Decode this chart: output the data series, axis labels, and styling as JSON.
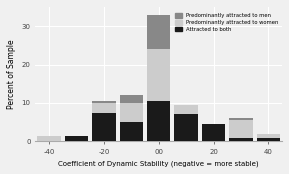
{
  "title": "",
  "xlabel": "Coefficient of Dynamic Stability (negative = more stable)",
  "ylabel": "Percent of Sample",
  "xlim": [
    -45,
    45
  ],
  "ylim": [
    0,
    35
  ],
  "yticks": [
    0,
    10,
    20,
    30
  ],
  "xtick_labels": [
    "-40",
    "-20",
    "00",
    "20",
    "40"
  ],
  "xtick_positions": [
    -40,
    -20,
    0,
    20,
    40
  ],
  "bin_centers": [
    -40,
    -30,
    -20,
    -10,
    0,
    10,
    20,
    30,
    40
  ],
  "bar_width": 8.5,
  "men_values": [
    0.0,
    0.0,
    0.5,
    2.0,
    9.0,
    0.0,
    0.0,
    0.5,
    0.0
  ],
  "women_values": [
    1.5,
    0.0,
    2.5,
    5.0,
    13.5,
    2.5,
    0.0,
    4.5,
    1.0
  ],
  "both_values": [
    0.0,
    1.5,
    7.5,
    5.0,
    10.5,
    7.0,
    4.5,
    1.0,
    1.0
  ],
  "color_men": "#888888",
  "color_women": "#cccccc",
  "color_both": "#1a1a1a",
  "legend_labels": [
    "Predominantly attracted to men",
    "Predominantly attracted to women",
    "Attracted to both"
  ],
  "background_color": "#f0f0f0",
  "grid_color": "#ffffff",
  "font_size": 5,
  "ylabel_fontsize": 5.5,
  "xlabel_fontsize": 5
}
